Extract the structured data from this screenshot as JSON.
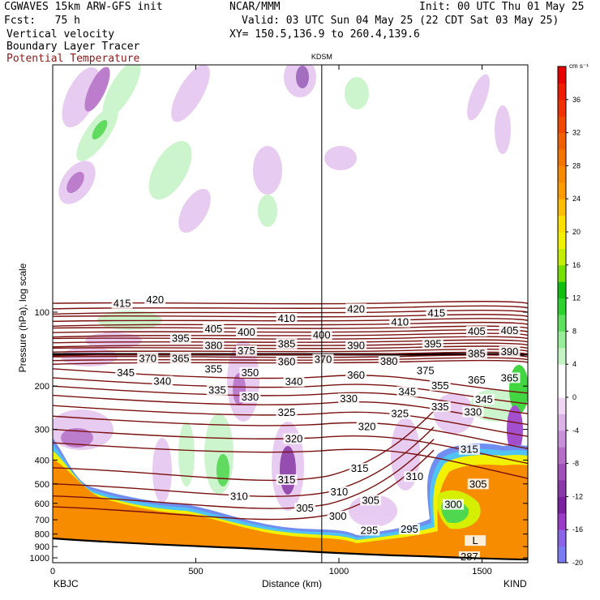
{
  "header": {
    "model": "CGWAVES 15km ARW-GFS init",
    "org": "NCAR/MMM",
    "init": "Init: 00 UTC Thu 01 May 25",
    "fcst": "Fcst:   75 h",
    "valid": "Valid: 03 UTC Sun 04 May 25 (22 CDT Sat 03 May 25)",
    "field1": "Vertical velocity",
    "field2": "Boundary Layer Tracer",
    "field3": "Potential Temperature",
    "xy": "XY= 150.5,136.9 to 260.4,139.6",
    "colors": {
      "theta": "#7a1010",
      "text": "#000000"
    }
  },
  "chart_data": {
    "type": "heatmap",
    "xlabel": "Distance (km)",
    "ylabel": "Pressure (hPa), log scale",
    "x_ticks": [
      0,
      500,
      1000,
      1500
    ],
    "xlim": [
      0,
      1660
    ],
    "y_ticks": [
      100,
      200,
      300,
      400,
      500,
      600,
      700,
      800,
      900,
      1000
    ],
    "ylim": [
      1000,
      10
    ],
    "y_scale": "log",
    "endpoints": {
      "left": "KBJC",
      "right": "KIND"
    },
    "station_marker": {
      "label": "KDSM",
      "x": 940
    },
    "colorbar": {
      "unit": "cm s⁻¹",
      "levels": [
        -20,
        -18,
        -16,
        -14,
        -12,
        -10,
        -8,
        -6,
        -4,
        -2,
        0,
        2,
        4,
        6,
        8,
        10,
        12,
        14,
        16,
        18,
        20,
        22,
        24,
        26,
        28,
        30,
        32,
        34,
        36,
        38,
        40
      ],
      "tick_labels": [
        -20,
        -16,
        -12,
        -8,
        -4,
        0,
        4,
        8,
        12,
        16,
        20,
        24,
        28,
        32,
        36
      ],
      "colors": [
        "#7b7bf5",
        "#8a63e8",
        "#9a3cc8",
        "#7a20a0",
        "#8a3aa8",
        "#a050b8",
        "#b46ec8",
        "#c890d8",
        "#ddb2e6",
        "#f0d6f4",
        "#ffffff",
        "#ffffff",
        "#c4f4c4",
        "#98ee98",
        "#5ee25e",
        "#2ed22e",
        "#10c010",
        "#74e000",
        "#c4ee00",
        "#f2f200",
        "#fce000",
        "#fcbc00",
        "#fc9c00",
        "#f88a00",
        "#f47400",
        "#f06000",
        "#f04800",
        "#f03000",
        "#f01c00",
        "#e80000"
      ]
    },
    "theta_contours": [
      {
        "label": "415",
        "p": 93,
        "x": 95
      },
      {
        "label": "420",
        "p": 90,
        "x": 140
      },
      {
        "label": "405",
        "p": 118,
        "x": 220
      },
      {
        "label": "395",
        "p": 129,
        "x": 175
      },
      {
        "label": "400",
        "p": 122,
        "x": 265
      },
      {
        "label": "410",
        "p": 107,
        "x": 320
      },
      {
        "label": "380",
        "p": 138,
        "x": 220
      },
      {
        "label": "375",
        "p": 145,
        "x": 265
      },
      {
        "label": "385",
        "p": 136,
        "x": 320
      },
      {
        "label": "400",
        "p": 125,
        "x": 368
      },
      {
        "label": "370",
        "p": 156,
        "x": 130
      },
      {
        "label": "365",
        "p": 156,
        "x": 175
      },
      {
        "label": "360",
        "p": 161,
        "x": 320
      },
      {
        "label": "355",
        "p": 172,
        "x": 220
      },
      {
        "label": "350",
        "p": 178,
        "x": 270
      },
      {
        "label": "345",
        "p": 178,
        "x": 100
      },
      {
        "label": "340",
        "p": 193,
        "x": 150
      },
      {
        "label": "340",
        "p": 194,
        "x": 330
      },
      {
        "label": "335",
        "p": 210,
        "x": 225
      },
      {
        "label": "330",
        "p": 224,
        "x": 270
      },
      {
        "label": "325",
        "p": 259,
        "x": 320
      },
      {
        "label": "320",
        "p": 331,
        "x": 330
      },
      {
        "label": "315",
        "p": 486,
        "x": 320
      },
      {
        "label": "310",
        "p": 568,
        "x": 255
      },
      {
        "label": "305",
        "p": 633,
        "x": 345
      },
      {
        "label": "300",
        "p": 683,
        "x": 390
      },
      {
        "label": "420",
        "p": 98,
        "x": 415
      },
      {
        "label": "410",
        "p": 111,
        "x": 475
      },
      {
        "label": "415",
        "p": 102,
        "x": 525
      },
      {
        "label": "405",
        "p": 121,
        "x": 580
      },
      {
        "label": "405",
        "p": 120,
        "x": 625
      },
      {
        "label": "390",
        "p": 138,
        "x": 415
      },
      {
        "label": "395",
        "p": 136,
        "x": 520
      },
      {
        "label": "390",
        "p": 146,
        "x": 625
      },
      {
        "label": "380",
        "p": 160,
        "x": 460
      },
      {
        "label": "385",
        "p": 149,
        "x": 580
      },
      {
        "label": "370",
        "p": 157,
        "x": 370
      },
      {
        "label": "375",
        "p": 175,
        "x": 510
      },
      {
        "label": "360",
        "p": 182,
        "x": 415
      },
      {
        "label": "355",
        "p": 201,
        "x": 530
      },
      {
        "label": "365",
        "p": 191,
        "x": 580
      },
      {
        "label": "365",
        "p": 187,
        "x": 625
      },
      {
        "label": "345",
        "p": 213,
        "x": 485
      },
      {
        "label": "345",
        "p": 229,
        "x": 590
      },
      {
        "label": "330",
        "p": 227,
        "x": 405
      },
      {
        "label": "335",
        "p": 245,
        "x": 530
      },
      {
        "label": "325",
        "p": 262,
        "x": 475
      },
      {
        "label": "330",
        "p": 258,
        "x": 575
      },
      {
        "label": "320",
        "p": 295,
        "x": 430
      },
      {
        "label": "315",
        "p": 366,
        "x": 570
      },
      {
        "label": "315",
        "p": 437,
        "x": 420
      },
      {
        "label": "310",
        "p": 472,
        "x": 495
      },
      {
        "label": "305",
        "p": 589,
        "x": 435
      },
      {
        "label": "310",
        "p": 544,
        "x": 392
      },
      {
        "label": "305",
        "p": 506,
        "x": 582
      },
      {
        "label": "300",
        "p": 613,
        "x": 548
      },
      {
        "label": "295",
        "p": 781,
        "x": 433
      },
      {
        "label": "295",
        "p": 773,
        "x": 488
      },
      {
        "label": "L",
        "p": 860,
        "x": 578
      },
      {
        "label": "287",
        "p": 1000,
        "x": 570
      }
    ]
  }
}
